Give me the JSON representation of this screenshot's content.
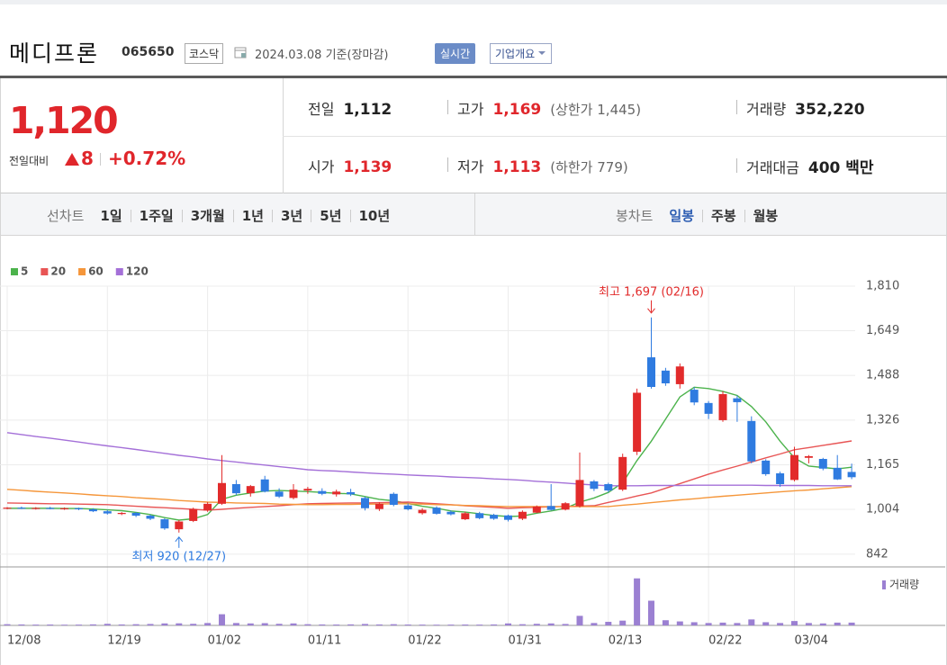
{
  "header": {
    "name": "메디프론",
    "code": "065650",
    "market": "코스닥",
    "date": "2024.03.08 기준(장마감)",
    "realtime": "실시간",
    "overview": "기업개요"
  },
  "quote": {
    "price": "1,120",
    "change_label": "전일대비",
    "change": "8",
    "change_pct": "+0.72%",
    "stats": [
      {
        "label": "전일",
        "value": "1,112"
      },
      {
        "label": "고가",
        "value": "1,169",
        "extra": "(상한가 1,445)"
      },
      {
        "label": "거래량",
        "value": "352,220"
      },
      {
        "label": "시가",
        "value": "1,139"
      },
      {
        "label": "저가",
        "value": "1,113",
        "extra": "(하한가 779)"
      },
      {
        "label": "거래대금",
        "value": "400 백만"
      }
    ]
  },
  "tabs": {
    "line_label": "선차트",
    "line_periods": [
      "1일",
      "1주일",
      "3개월",
      "1년",
      "3년",
      "5년",
      "10년"
    ],
    "candle_label": "봉차트",
    "candle_periods": [
      "일봉",
      "주봉",
      "월봉"
    ],
    "selected_candle": 0
  },
  "chart_data": {
    "type": "candlestick",
    "categories": [
      "12/08",
      null,
      null,
      null,
      null,
      null,
      null,
      "12/19",
      null,
      null,
      null,
      null,
      null,
      null,
      "01/02",
      null,
      null,
      null,
      null,
      null,
      null,
      "01/11",
      null,
      null,
      null,
      null,
      null,
      null,
      "01/22",
      null,
      null,
      null,
      null,
      null,
      null,
      "01/31",
      null,
      null,
      null,
      null,
      null,
      null,
      "02/13",
      null,
      null,
      null,
      null,
      null,
      null,
      "02/22",
      null,
      null,
      null,
      null,
      null,
      "03/04",
      null,
      null,
      null,
      null
    ],
    "open": [
      1008,
      1010,
      1007,
      1009,
      1006,
      1008,
      1004,
      997,
      987,
      991,
      981,
      968,
      932,
      962,
      1000,
      1024,
      1095,
      1062,
      1112,
      1068,
      1045,
      1072,
      1070,
      1058,
      1066,
      1045,
      1005,
      1060,
      1018,
      990,
      1010,
      995,
      968,
      990,
      984,
      982,
      970,
      992,
      1016,
      1003,
      1015,
      1105,
      1095,
      1075,
      1212,
      1553,
      1505,
      1456,
      1436,
      1388,
      1326,
      1405,
      1323,
      1180,
      1134,
      1110,
      1190,
      1186,
      1154,
      1139
    ],
    "high": [
      1012,
      1014,
      1012,
      1013,
      1011,
      1010,
      1008,
      1002,
      994,
      994,
      985,
      972,
      965,
      1010,
      1030,
      1200,
      1110,
      1092,
      1125,
      1080,
      1095,
      1085,
      1080,
      1075,
      1078,
      1050,
      1030,
      1065,
      1025,
      1008,
      1015,
      1000,
      995,
      995,
      988,
      985,
      1000,
      1018,
      1095,
      1030,
      1209,
      1110,
      1100,
      1205,
      1440,
      1697,
      1515,
      1531,
      1445,
      1395,
      1430,
      1415,
      1340,
      1185,
      1140,
      1230,
      1200,
      1190,
      1200,
      1169
    ],
    "low": [
      1004,
      1005,
      1003,
      1004,
      1002,
      1001,
      994,
      985,
      983,
      976,
      965,
      930,
      920,
      958,
      995,
      1020,
      1055,
      1050,
      1065,
      1045,
      1040,
      1060,
      1055,
      1050,
      1052,
      1000,
      998,
      1015,
      1000,
      985,
      985,
      982,
      965,
      968,
      966,
      960,
      965,
      990,
      1000,
      1000,
      1010,
      1070,
      1065,
      1070,
      1200,
      1440,
      1450,
      1440,
      1380,
      1330,
      1320,
      1320,
      1170,
      1125,
      1085,
      1105,
      1170,
      1145,
      1110,
      1113
    ],
    "close": [
      1010,
      1007,
      1009,
      1006,
      1008,
      1004,
      997,
      989,
      991,
      981,
      970,
      935,
      960,
      1005,
      1024,
      1099,
      1062,
      1088,
      1068,
      1050,
      1075,
      1078,
      1060,
      1068,
      1058,
      1008,
      1024,
      1020,
      1004,
      1002,
      988,
      986,
      990,
      972,
      970,
      966,
      995,
      1014,
      1002,
      1026,
      1110,
      1078,
      1072,
      1193,
      1425,
      1446,
      1459,
      1520,
      1390,
      1349,
      1420,
      1391,
      1177,
      1131,
      1095,
      1200,
      1196,
      1151,
      1112,
      1120
    ],
    "up_color": "#e22b2b",
    "down_color": "#2f7be0",
    "ylim": [
      796,
      1836
    ],
    "yticks": [
      842,
      {
        "value": 1004,
        "label": "1,004"
      },
      {
        "value": 1165,
        "label": "1,165"
      },
      {
        "value": 1326,
        "label": "1,326"
      },
      {
        "value": 1488,
        "label": "1,488"
      },
      {
        "value": 1649,
        "label": "1,649"
      },
      {
        "value": 1810,
        "label": "1,810"
      }
    ],
    "grid": true,
    "moving_averages": [
      {
        "name": "5",
        "color": "#4cb34c",
        "values": [
          1008,
          1008,
          1008,
          1008,
          1007,
          1007,
          1005,
          1002,
          999,
          993,
          985,
          974,
          965,
          970,
          985,
          1040,
          1055,
          1063,
          1070,
          1072,
          1070,
          1068,
          1065,
          1062,
          1060,
          1050,
          1040,
          1035,
          1025,
          1015,
          1008,
          998,
          994,
          988,
          982,
          978,
          980,
          990,
          998,
          1008,
          1030,
          1045,
          1065,
          1100,
          1180,
          1250,
          1330,
          1410,
          1445,
          1440,
          1430,
          1415,
          1375,
          1320,
          1250,
          1190,
          1160,
          1155,
          1150,
          1156
        ]
      },
      {
        "name": "20",
        "color": "#e85555",
        "values": [
          1027,
          1026,
          1025,
          1024,
          1024,
          1023,
          1022,
          1021,
          1018,
          1015,
          1012,
          1010,
          1007,
          1004,
          1001,
          1004,
          1008,
          1011,
          1014,
          1017,
          1021,
          1024,
          1025,
          1026,
          1027,
          1027,
          1028,
          1029,
          1030,
          1027,
          1024,
          1021,
          1017,
          1014,
          1011,
          1008,
          1010,
          1011,
          1013,
          1014,
          1016,
          1017,
          1029,
          1040,
          1052,
          1063,
          1080,
          1097,
          1114,
          1131,
          1146,
          1160,
          1175,
          1190,
          1204,
          1219,
          1227,
          1235,
          1243,
          1251
        ]
      },
      {
        "name": "60",
        "color": "#f5963a",
        "values": [
          1076,
          1073,
          1069,
          1066,
          1063,
          1060,
          1056,
          1053,
          1050,
          1046,
          1043,
          1040,
          1036,
          1033,
          1030,
          1029,
          1027,
          1026,
          1025,
          1023,
          1022,
          1021,
          1021,
          1022,
          1022,
          1023,
          1023,
          1024,
          1024,
          1023,
          1021,
          1020,
          1018,
          1017,
          1015,
          1014,
          1014,
          1014,
          1014,
          1014,
          1014,
          1014,
          1014,
          1019,
          1023,
          1028,
          1033,
          1038,
          1042,
          1047,
          1051,
          1055,
          1059,
          1063,
          1067,
          1071,
          1074,
          1078,
          1082,
          1086
        ]
      },
      {
        "name": "120",
        "color": "#a470d8",
        "values": [
          1281,
          1274,
          1267,
          1261,
          1254,
          1247,
          1240,
          1233,
          1227,
          1220,
          1213,
          1206,
          1199,
          1193,
          1186,
          1180,
          1175,
          1169,
          1164,
          1158,
          1153,
          1147,
          1144,
          1142,
          1139,
          1136,
          1133,
          1131,
          1128,
          1126,
          1124,
          1121,
          1119,
          1117,
          1114,
          1112,
          1109,
          1105,
          1102,
          1099,
          1095,
          1092,
          1089,
          1089,
          1089,
          1090,
          1090,
          1090,
          1091,
          1091,
          1091,
          1091,
          1091,
          1090,
          1090,
          1090,
          1090,
          1089,
          1089,
          1089
        ]
      }
    ],
    "max_label": "최고 1,697 (02/16)",
    "min_label": "최저 920 (12/27)",
    "volume": {
      "name": "거래량",
      "color": "#9b80d2",
      "ylim": [
        0,
        7000000
      ],
      "values": [
        150000,
        120000,
        100000,
        110000,
        90000,
        100000,
        130000,
        200000,
        120000,
        150000,
        180000,
        250000,
        260000,
        200000,
        300000,
        1400000,
        300000,
        250000,
        280000,
        200000,
        250000,
        150000,
        120000,
        110000,
        130000,
        180000,
        120000,
        150000,
        110000,
        100000,
        90000,
        100000,
        110000,
        100000,
        120000,
        250000,
        150000,
        200000,
        250000,
        180000,
        1200000,
        300000,
        450000,
        600000,
        5900000,
        3100000,
        650000,
        500000,
        400000,
        300000,
        350000,
        300000,
        750000,
        400000,
        300000,
        550000,
        300000,
        250000,
        350000,
        352220
      ]
    }
  }
}
